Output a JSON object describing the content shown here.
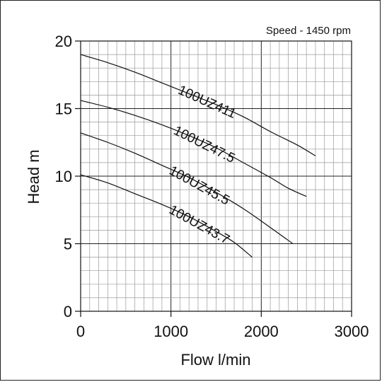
{
  "chart_data": {
    "type": "line",
    "title": "",
    "annotation": "Speed - 1450 rpm",
    "xlabel": "Flow l/min",
    "ylabel": "Head m",
    "xlim": [
      0,
      3000
    ],
    "ylim": [
      0,
      20
    ],
    "xticks": [
      0,
      1000,
      2000,
      3000
    ],
    "yticks": [
      0,
      5,
      10,
      15,
      20
    ],
    "minor_x_step": 100,
    "minor_y_step": 1,
    "grid": true,
    "legend": "none",
    "series": [
      {
        "name": "100UZ411",
        "x": [
          0,
          300,
          600,
          900,
          1200,
          1500,
          1800,
          2100,
          2400,
          2600
        ],
        "y": [
          19.0,
          18.4,
          17.7,
          16.9,
          16.1,
          15.3,
          14.4,
          13.3,
          12.3,
          11.5
        ]
      },
      {
        "name": "100UZ47.5",
        "x": [
          0,
          300,
          600,
          900,
          1200,
          1500,
          1800,
          2100,
          2300,
          2500
        ],
        "y": [
          15.6,
          15.1,
          14.5,
          13.8,
          13.0,
          12.1,
          11.0,
          9.9,
          9.1,
          8.5
        ]
      },
      {
        "name": "100UZ45.5",
        "x": [
          0,
          300,
          600,
          900,
          1200,
          1500,
          1800,
          2100,
          2350
        ],
        "y": [
          13.2,
          12.5,
          11.7,
          10.8,
          9.9,
          8.8,
          7.6,
          6.2,
          5.0
        ]
      },
      {
        "name": "100UZ43.7",
        "x": [
          0,
          300,
          600,
          900,
          1200,
          1500,
          1700,
          1900
        ],
        "y": [
          10.1,
          9.5,
          8.7,
          7.9,
          7.0,
          5.9,
          5.1,
          4.0
        ]
      }
    ]
  }
}
